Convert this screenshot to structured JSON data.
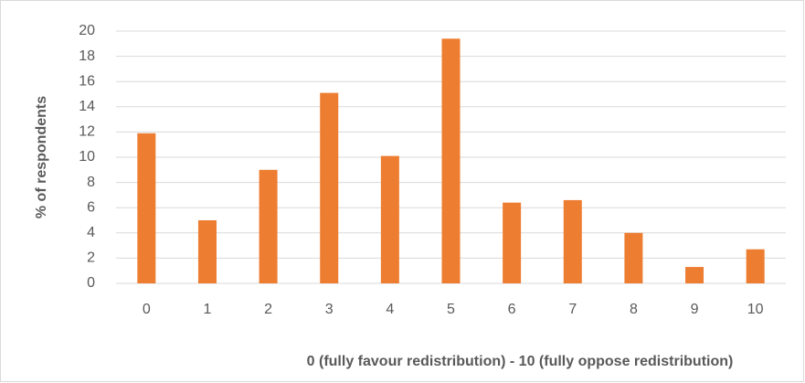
{
  "chart_data": {
    "type": "bar",
    "x_label": "0 (fully favour redistribution) - 10 (fully oppose redistribution)",
    "y_label": "% of respondents",
    "categories": [
      "0",
      "1",
      "2",
      "3",
      "4",
      "5",
      "6",
      "7",
      "8",
      "9",
      "10"
    ],
    "values": [
      11.9,
      5.0,
      9.0,
      15.1,
      10.1,
      19.4,
      6.4,
      6.6,
      4.0,
      1.3,
      2.7
    ],
    "color": "#ed7d31",
    "ylim": [
      0,
      20
    ],
    "yticks": [
      0,
      2,
      4,
      6,
      8,
      10,
      12,
      14,
      16,
      18,
      20
    ],
    "grid": true
  }
}
